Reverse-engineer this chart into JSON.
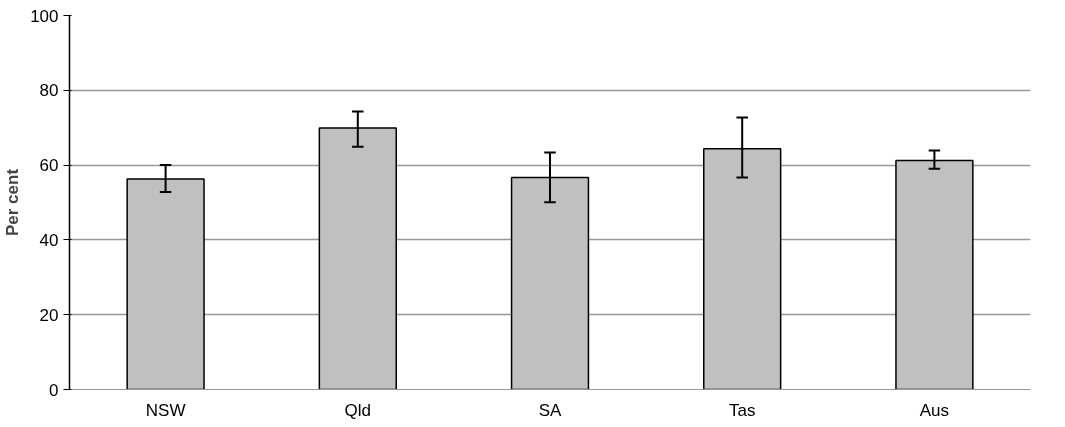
{
  "chart_data": {
    "type": "bar",
    "ylabel": "Per cent",
    "categories": [
      "NSW",
      "Qld",
      "SA",
      "Tas",
      "Aus"
    ],
    "values": [
      56.3,
      69.9,
      56.7,
      64.4,
      61.2
    ],
    "errors": [
      [
        52.8,
        60
      ],
      [
        64.9,
        74.3
      ],
      [
        50.1,
        63.4
      ],
      [
        56.7,
        72.7
      ],
      [
        59,
        63.9
      ]
    ],
    "color": "#c0c0c0",
    "ylim": [
      0,
      100
    ],
    "yticks": [
      0,
      20,
      40,
      60,
      80,
      100
    ],
    "grid": "y"
  }
}
